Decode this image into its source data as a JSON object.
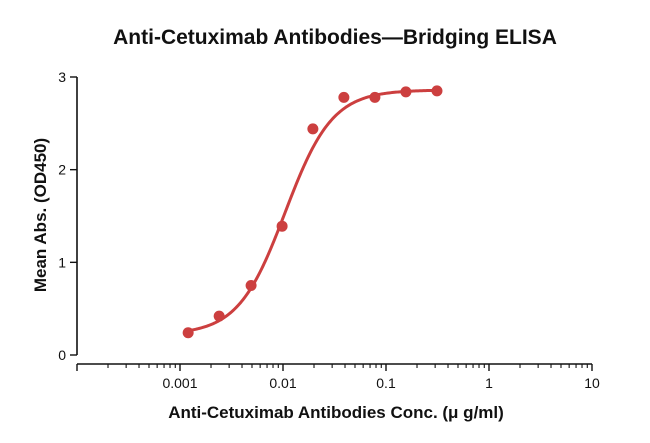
{
  "chart_data": {
    "type": "scatter",
    "title": "Anti-Cetuximab Antibodies—Bridging ELISA",
    "xlabel": "Anti-Cetuximab Antibodies Conc. (μ g/ml)",
    "ylabel": "Mean Abs. (OD450)",
    "x_scale": "log",
    "xlim": [
      0.0001,
      10
    ],
    "ylim": [
      0,
      3
    ],
    "x_ticks": [
      {
        "value": 0.001,
        "label": "0.001"
      },
      {
        "value": 0.01,
        "label": "0.01"
      },
      {
        "value": 0.1,
        "label": "0.1"
      },
      {
        "value": 1,
        "label": "1"
      },
      {
        "value": 10,
        "label": "10"
      }
    ],
    "y_ticks": [
      {
        "value": 0,
        "label": "0"
      },
      {
        "value": 1,
        "label": "1"
      },
      {
        "value": 2,
        "label": "2"
      },
      {
        "value": 3,
        "label": "3"
      }
    ],
    "grid": false,
    "legend": "none",
    "color": "#cc3f3f",
    "series": [
      {
        "points": [
          {
            "x": 0.0012,
            "y": 0.24
          },
          {
            "x": 0.0024,
            "y": 0.42
          },
          {
            "x": 0.0049,
            "y": 0.75
          },
          {
            "x": 0.0098,
            "y": 1.39
          },
          {
            "x": 0.0195,
            "y": 2.44
          },
          {
            "x": 0.039,
            "y": 2.78
          },
          {
            "x": 0.078,
            "y": 2.78
          },
          {
            "x": 0.156,
            "y": 2.84
          },
          {
            "x": 0.3125,
            "y": 2.85
          }
        ],
        "fit": {
          "model": "4PL",
          "bottom": 0.22,
          "top": 2.86,
          "ec50": 0.0105,
          "hill": 1.9,
          "x_range": [
            0.0012,
            0.3125
          ]
        }
      }
    ]
  }
}
